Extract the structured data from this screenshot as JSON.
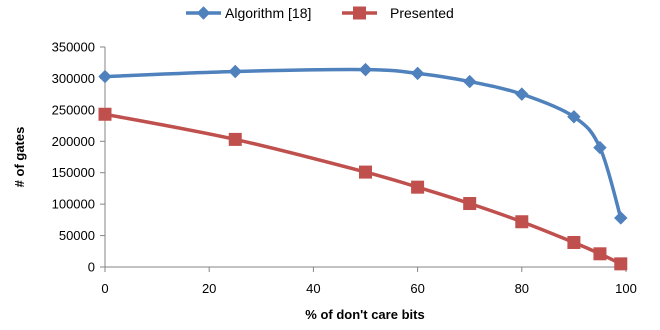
{
  "chart_data": {
    "type": "line",
    "xlabel": "% of don't care bits",
    "ylabel": "# of gates",
    "xlim": [
      0,
      100
    ],
    "ylim": [
      0,
      350000
    ],
    "x_ticks": [
      0,
      20,
      40,
      60,
      80,
      100
    ],
    "y_ticks": [
      0,
      50000,
      100000,
      150000,
      200000,
      250000,
      300000,
      350000
    ],
    "grid": false,
    "legend_position": "top",
    "smooth": true,
    "series": [
      {
        "name": "Algorithm [18]",
        "color": "#4F81BD",
        "marker": "diamond",
        "x": [
          0,
          25,
          50,
          60,
          70,
          80,
          90,
          95,
          99
        ],
        "values": [
          303000,
          311000,
          314000,
          308000,
          295000,
          275000,
          239000,
          190000,
          78000
        ]
      },
      {
        "name": "Presented",
        "color": "#C0504D",
        "marker": "square",
        "x": [
          0,
          25,
          50,
          60,
          70,
          80,
          90,
          95,
          99
        ],
        "values": [
          243000,
          203000,
          151000,
          127000,
          101000,
          72000,
          39000,
          21000,
          5000
        ]
      }
    ]
  }
}
